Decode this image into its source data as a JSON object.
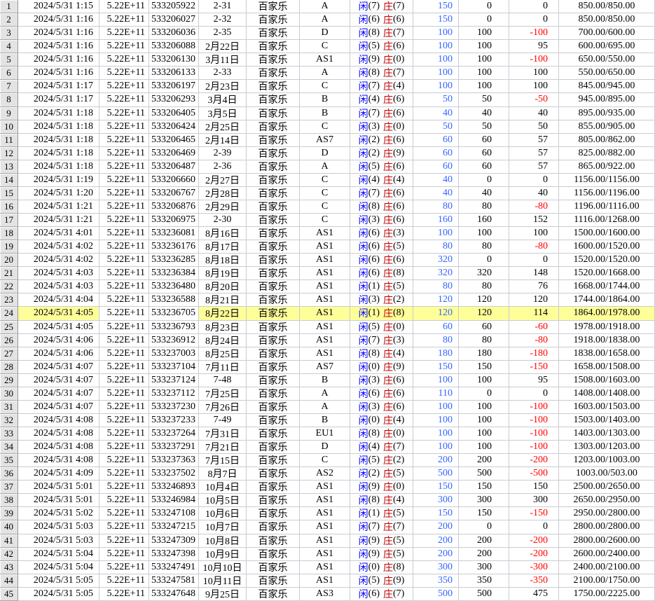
{
  "labels": {
    "player_char": "闲",
    "banker_char": "庄",
    "game": "百家乐"
  },
  "colors": {
    "highlight_row": "#ffff99",
    "player_blue": "#0000ff",
    "banker_red": "#c00000",
    "bet_blue": "#3366ff",
    "negative_red": "#ff0000",
    "gridline": "#c9ccd2",
    "row_header_bg": "#e3e3e3"
  },
  "rows": [
    {
      "n": 1,
      "time": "2024/5/31 1:15",
      "sci": "5.22E+11",
      "id": "533205922",
      "label": "2-31",
      "code": "A",
      "player": 7,
      "banker": 7,
      "bet": 150,
      "stake": 0,
      "result": 0,
      "balance": "850.00/850.00",
      "highlight": false
    },
    {
      "n": 2,
      "time": "2024/5/31 1:16",
      "sci": "5.22E+11",
      "id": "533206027",
      "label": "2-32",
      "code": "A",
      "player": 6,
      "banker": 6,
      "bet": 150,
      "stake": 0,
      "result": 0,
      "balance": "850.00/850.00",
      "highlight": false
    },
    {
      "n": 3,
      "time": "2024/5/31 1:16",
      "sci": "5.22E+11",
      "id": "533206036",
      "label": "2-35",
      "code": "D",
      "player": 8,
      "banker": 7,
      "bet": 100,
      "stake": 100,
      "result": -100,
      "balance": "700.00/600.00",
      "highlight": false
    },
    {
      "n": 4,
      "time": "2024/5/31 1:16",
      "sci": "5.22E+11",
      "id": "533206088",
      "label": "2月22日",
      "code": "C",
      "player": 5,
      "banker": 6,
      "bet": 100,
      "stake": 100,
      "result": 95,
      "balance": "600.00/695.00",
      "highlight": false
    },
    {
      "n": 5,
      "time": "2024/5/31 1:16",
      "sci": "5.22E+11",
      "id": "533206130",
      "label": "3月11日",
      "code": "AS1",
      "player": 9,
      "banker": 0,
      "bet": 100,
      "stake": 100,
      "result": -100,
      "balance": "650.00/550.00",
      "highlight": false
    },
    {
      "n": 6,
      "time": "2024/5/31 1:16",
      "sci": "5.22E+11",
      "id": "533206133",
      "label": "2-33",
      "code": "A",
      "player": 8,
      "banker": 7,
      "bet": 100,
      "stake": 100,
      "result": 100,
      "balance": "550.00/650.00",
      "highlight": false
    },
    {
      "n": 7,
      "time": "2024/5/31 1:17",
      "sci": "5.22E+11",
      "id": "533206197",
      "label": "2月23日",
      "code": "C",
      "player": 7,
      "banker": 4,
      "bet": 100,
      "stake": 100,
      "result": 100,
      "balance": "845.00/945.00",
      "highlight": false
    },
    {
      "n": 8,
      "time": "2024/5/31 1:17",
      "sci": "5.22E+11",
      "id": "533206293",
      "label": "3月4日",
      "code": "B",
      "player": 4,
      "banker": 6,
      "bet": 50,
      "stake": 50,
      "result": -50,
      "balance": "945.00/895.00",
      "highlight": false
    },
    {
      "n": 9,
      "time": "2024/5/31 1:18",
      "sci": "5.22E+11",
      "id": "533206405",
      "label": "3月5日",
      "code": "B",
      "player": 7,
      "banker": 6,
      "bet": 40,
      "stake": 40,
      "result": 40,
      "balance": "895.00/935.00",
      "highlight": false
    },
    {
      "n": 10,
      "time": "2024/5/31 1:18",
      "sci": "5.22E+11",
      "id": "533206424",
      "label": "2月25日",
      "code": "C",
      "player": 3,
      "banker": 0,
      "bet": 50,
      "stake": 50,
      "result": 50,
      "balance": "855.00/905.00",
      "highlight": false
    },
    {
      "n": 11,
      "time": "2024/5/31 1:18",
      "sci": "5.22E+11",
      "id": "533206465",
      "label": "2月14日",
      "code": "AS7",
      "player": 2,
      "banker": 6,
      "bet": 60,
      "stake": 60,
      "result": 57,
      "balance": "805.00/862.00",
      "highlight": false
    },
    {
      "n": 12,
      "time": "2024/5/31 1:18",
      "sci": "5.22E+11",
      "id": "533206469",
      "label": "2-39",
      "code": "D",
      "player": 2,
      "banker": 9,
      "bet": 60,
      "stake": 60,
      "result": 57,
      "balance": "825.00/882.00",
      "highlight": false
    },
    {
      "n": 13,
      "time": "2024/5/31 1:18",
      "sci": "5.22E+11",
      "id": "533206487",
      "label": "2-36",
      "code": "A",
      "player": 5,
      "banker": 6,
      "bet": 60,
      "stake": 60,
      "result": 57,
      "balance": "865.00/922.00",
      "highlight": false
    },
    {
      "n": 14,
      "time": "2024/5/31 1:19",
      "sci": "5.22E+11",
      "id": "533206660",
      "label": "2月27日",
      "code": "C",
      "player": 4,
      "banker": 4,
      "bet": 40,
      "stake": 0,
      "result": 0,
      "balance": "1156.00/1156.00",
      "highlight": false
    },
    {
      "n": 15,
      "time": "2024/5/31 1:20",
      "sci": "5.22E+11",
      "id": "533206767",
      "label": "2月28日",
      "code": "C",
      "player": 7,
      "banker": 6,
      "bet": 40,
      "stake": 40,
      "result": 40,
      "balance": "1156.00/1196.00",
      "highlight": false
    },
    {
      "n": 16,
      "time": "2024/5/31 1:21",
      "sci": "5.22E+11",
      "id": "533206876",
      "label": "2月29日",
      "code": "C",
      "player": 8,
      "banker": 6,
      "bet": 80,
      "stake": 80,
      "result": -80,
      "balance": "1196.00/1116.00",
      "highlight": false
    },
    {
      "n": 17,
      "time": "2024/5/31 1:21",
      "sci": "5.22E+11",
      "id": "533206975",
      "label": "2-30",
      "code": "C",
      "player": 3,
      "banker": 6,
      "bet": 160,
      "stake": 160,
      "result": 152,
      "balance": "1116.00/1268.00",
      "highlight": false
    },
    {
      "n": 18,
      "time": "2024/5/31 4:01",
      "sci": "5.22E+11",
      "id": "533236081",
      "label": "8月16日",
      "code": "AS1",
      "player": 6,
      "banker": 3,
      "bet": 100,
      "stake": 100,
      "result": 100,
      "balance": "1500.00/1600.00",
      "highlight": false
    },
    {
      "n": 19,
      "time": "2024/5/31 4:02",
      "sci": "5.22E+11",
      "id": "533236176",
      "label": "8月17日",
      "code": "AS1",
      "player": 6,
      "banker": 5,
      "bet": 80,
      "stake": 80,
      "result": -80,
      "balance": "1600.00/1520.00",
      "highlight": false
    },
    {
      "n": 20,
      "time": "2024/5/31 4:02",
      "sci": "5.22E+11",
      "id": "533236285",
      "label": "8月18日",
      "code": "AS1",
      "player": 6,
      "banker": 6,
      "bet": 320,
      "stake": 0,
      "result": 0,
      "balance": "1520.00/1520.00",
      "highlight": false
    },
    {
      "n": 21,
      "time": "2024/5/31 4:03",
      "sci": "5.22E+11",
      "id": "533236384",
      "label": "8月19日",
      "code": "AS1",
      "player": 6,
      "banker": 8,
      "bet": 320,
      "stake": 320,
      "result": 148,
      "balance": "1520.00/1668.00",
      "highlight": false
    },
    {
      "n": 22,
      "time": "2024/5/31 4:03",
      "sci": "5.22E+11",
      "id": "533236480",
      "label": "8月20日",
      "code": "AS1",
      "player": 1,
      "banker": 5,
      "bet": 80,
      "stake": 80,
      "result": 76,
      "balance": "1668.00/1744.00",
      "highlight": false
    },
    {
      "n": 23,
      "time": "2024/5/31 4:04",
      "sci": "5.22E+11",
      "id": "533236588",
      "label": "8月21日",
      "code": "AS1",
      "player": 3,
      "banker": 2,
      "bet": 120,
      "stake": 120,
      "result": 120,
      "balance": "1744.00/1864.00",
      "highlight": false
    },
    {
      "n": 24,
      "time": "2024/5/31 4:05",
      "sci": "5.22E+11",
      "id": "533236705",
      "label": "8月22日",
      "code": "AS1",
      "player": 1,
      "banker": 8,
      "bet": 120,
      "stake": 120,
      "result": 114,
      "balance": "1864.00/1978.00",
      "highlight": true
    },
    {
      "n": 25,
      "time": "2024/5/31 4:05",
      "sci": "5.22E+11",
      "id": "533236793",
      "label": "8月23日",
      "code": "AS1",
      "player": 5,
      "banker": 0,
      "bet": 60,
      "stake": 60,
      "result": -60,
      "balance": "1978.00/1918.00",
      "highlight": false
    },
    {
      "n": 26,
      "time": "2024/5/31 4:06",
      "sci": "5.22E+11",
      "id": "533236912",
      "label": "8月24日",
      "code": "AS1",
      "player": 7,
      "banker": 3,
      "bet": 80,
      "stake": 80,
      "result": -80,
      "balance": "1918.00/1838.00",
      "highlight": false
    },
    {
      "n": 27,
      "time": "2024/5/31 4:06",
      "sci": "5.22E+11",
      "id": "533237003",
      "label": "8月25日",
      "code": "AS1",
      "player": 8,
      "banker": 4,
      "bet": 180,
      "stake": 180,
      "result": -180,
      "balance": "1838.00/1658.00",
      "highlight": false
    },
    {
      "n": 28,
      "time": "2024/5/31 4:07",
      "sci": "5.22E+11",
      "id": "533237104",
      "label": "7月11日",
      "code": "AS7",
      "player": 0,
      "banker": 9,
      "bet": 150,
      "stake": 150,
      "result": -150,
      "balance": "1658.00/1508.00",
      "highlight": false
    },
    {
      "n": 29,
      "time": "2024/5/31 4:07",
      "sci": "5.22E+11",
      "id": "533237124",
      "label": "7-48",
      "code": "B",
      "player": 3,
      "banker": 6,
      "bet": 100,
      "stake": 100,
      "result": 95,
      "balance": "1508.00/1603.00",
      "highlight": false
    },
    {
      "n": 30,
      "time": "2024/5/31 4:07",
      "sci": "5.22E+11",
      "id": "533237112",
      "label": "7月25日",
      "code": "A",
      "player": 6,
      "banker": 6,
      "bet": 110,
      "stake": 0,
      "result": 0,
      "balance": "1408.00/1408.00",
      "highlight": false
    },
    {
      "n": 31,
      "time": "2024/5/31 4:07",
      "sci": "5.22E+11",
      "id": "533237230",
      "label": "7月26日",
      "code": "A",
      "player": 3,
      "banker": 6,
      "bet": 100,
      "stake": 100,
      "result": -100,
      "balance": "1603.00/1503.00",
      "highlight": false
    },
    {
      "n": 32,
      "time": "2024/5/31 4:08",
      "sci": "5.22E+11",
      "id": "533237233",
      "label": "7-49",
      "code": "B",
      "player": 0,
      "banker": 4,
      "bet": 100,
      "stake": 100,
      "result": -100,
      "balance": "1503.00/1403.00",
      "highlight": false
    },
    {
      "n": 33,
      "time": "2024/5/31 4:08",
      "sci": "5.22E+11",
      "id": "533237264",
      "label": "7月31日",
      "code": "EU1",
      "player": 8,
      "banker": 0,
      "bet": 100,
      "stake": 100,
      "result": -100,
      "balance": "1403.00/1303.00",
      "highlight": false
    },
    {
      "n": 34,
      "time": "2024/5/31 4:08",
      "sci": "5.22E+11",
      "id": "533237291",
      "label": "7月21日",
      "code": "D",
      "player": 4,
      "banker": 7,
      "bet": 100,
      "stake": 100,
      "result": -100,
      "balance": "1303.00/1203.00",
      "highlight": false
    },
    {
      "n": 35,
      "time": "2024/5/31 4:08",
      "sci": "5.22E+11",
      "id": "533237363",
      "label": "7月15日",
      "code": "C",
      "player": 5,
      "banker": 2,
      "bet": 200,
      "stake": 200,
      "result": -200,
      "balance": "1203.00/1003.00",
      "highlight": false
    },
    {
      "n": 36,
      "time": "2024/5/31 4:09",
      "sci": "5.22E+11",
      "id": "533237502",
      "label": "8月7日",
      "code": "AS2",
      "player": 2,
      "banker": 5,
      "bet": 500,
      "stake": 500,
      "result": -500,
      "balance": "1003.00/503.00",
      "highlight": false
    },
    {
      "n": 37,
      "time": "2024/5/31 5:01",
      "sci": "5.22E+11",
      "id": "533246893",
      "label": "10月4日",
      "code": "AS1",
      "player": 9,
      "banker": 0,
      "bet": 150,
      "stake": 150,
      "result": 150,
      "balance": "2500.00/2650.00",
      "highlight": false
    },
    {
      "n": 38,
      "time": "2024/5/31 5:01",
      "sci": "5.22E+11",
      "id": "533246984",
      "label": "10月5日",
      "code": "AS1",
      "player": 8,
      "banker": 4,
      "bet": 300,
      "stake": 300,
      "result": 300,
      "balance": "2650.00/2950.00",
      "highlight": false
    },
    {
      "n": 39,
      "time": "2024/5/31 5:02",
      "sci": "5.22E+11",
      "id": "533247108",
      "label": "10月6日",
      "code": "AS1",
      "player": 1,
      "banker": 5,
      "bet": 150,
      "stake": 150,
      "result": -150,
      "balance": "2950.00/2800.00",
      "highlight": false
    },
    {
      "n": 40,
      "time": "2024/5/31 5:03",
      "sci": "5.22E+11",
      "id": "533247215",
      "label": "10月7日",
      "code": "AS1",
      "player": 7,
      "banker": 7,
      "bet": 200,
      "stake": 0,
      "result": 0,
      "balance": "2800.00/2800.00",
      "highlight": false
    },
    {
      "n": 41,
      "time": "2024/5/31 5:03",
      "sci": "5.22E+11",
      "id": "533247309",
      "label": "10月8日",
      "code": "AS1",
      "player": 9,
      "banker": 5,
      "bet": 200,
      "stake": 200,
      "result": -200,
      "balance": "2800.00/2600.00",
      "highlight": false
    },
    {
      "n": 42,
      "time": "2024/5/31 5:04",
      "sci": "5.22E+11",
      "id": "533247398",
      "label": "10月9日",
      "code": "AS1",
      "player": 9,
      "banker": 5,
      "bet": 200,
      "stake": 200,
      "result": -200,
      "balance": "2600.00/2400.00",
      "highlight": false
    },
    {
      "n": 43,
      "time": "2024/5/31 5:04",
      "sci": "5.22E+11",
      "id": "533247491",
      "label": "10月10日",
      "code": "AS1",
      "player": 0,
      "banker": 8,
      "bet": 300,
      "stake": 300,
      "result": -300,
      "balance": "2400.00/2100.00",
      "highlight": false
    },
    {
      "n": 44,
      "time": "2024/5/31 5:05",
      "sci": "5.22E+11",
      "id": "533247581",
      "label": "10月11日",
      "code": "AS1",
      "player": 5,
      "banker": 9,
      "bet": 350,
      "stake": 350,
      "result": -350,
      "balance": "2100.00/1750.00",
      "highlight": false
    },
    {
      "n": 45,
      "time": "2024/5/31 5:05",
      "sci": "5.22E+11",
      "id": "533247648",
      "label": "9月25日",
      "code": "AS3",
      "player": 6,
      "banker": 7,
      "bet": 500,
      "stake": 500,
      "result": 475,
      "balance": "1750.00/2225.00",
      "highlight": false
    }
  ]
}
